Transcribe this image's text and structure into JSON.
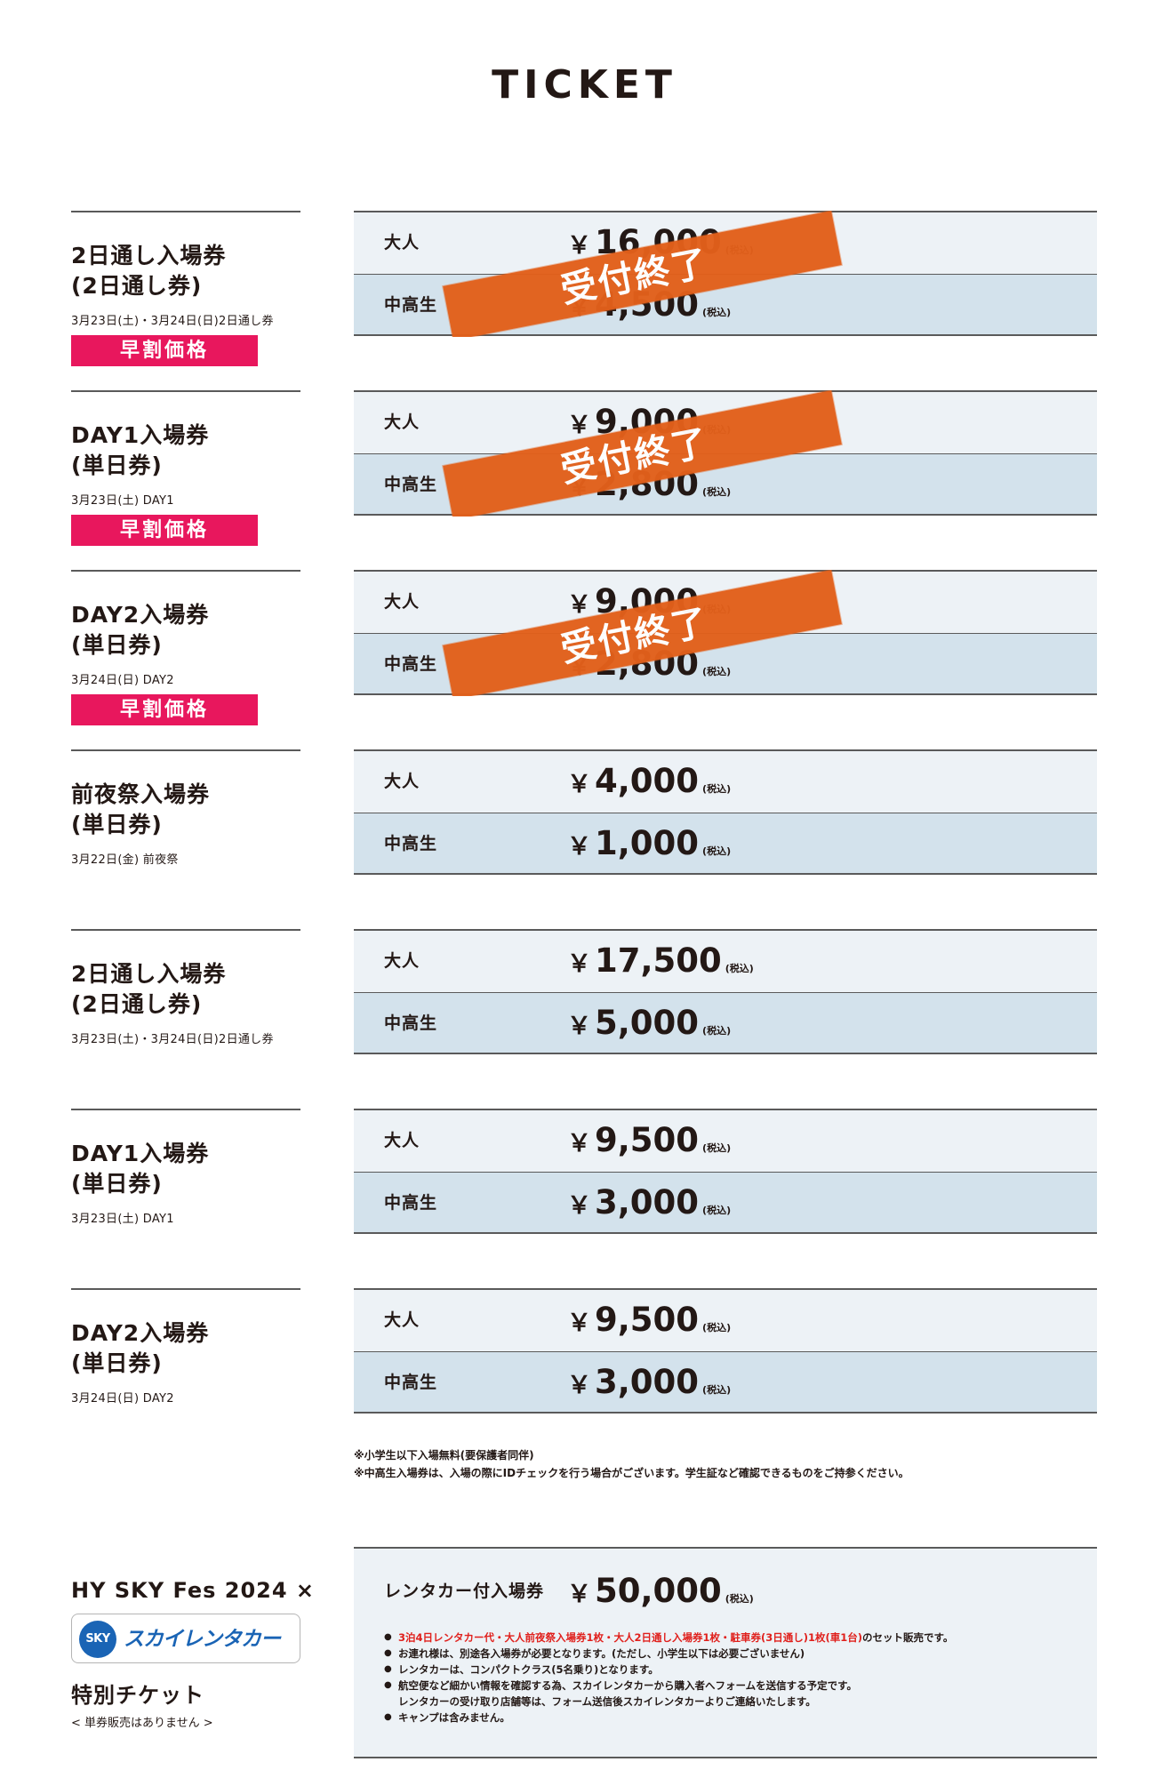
{
  "page_title": "TICKET",
  "closed_label": "受付終了",
  "early_bird_label": "早割価格",
  "tax_label": "(税込)",
  "yen_symbol": "￥",
  "groups": [
    {
      "name_line1": "2日通し入場券",
      "name_line2": "(2日通し券)",
      "date": "3月23日(土)・3月24日(日)2日通し券",
      "early_bird": true,
      "closed": true,
      "adult_label": "大人",
      "adult_price": "16,000",
      "student_label": "中高生",
      "student_price": "4,500"
    },
    {
      "name_line1": "DAY1入場券",
      "name_line2": "(単日券)",
      "date": "3月23日(土) DAY1",
      "early_bird": true,
      "closed": true,
      "adult_label": "大人",
      "adult_price": "9,000",
      "student_label": "中高生",
      "student_price": "2,800"
    },
    {
      "name_line1": "DAY2入場券",
      "name_line2": "(単日券)",
      "date": "3月24日(日) DAY2",
      "early_bird": true,
      "closed": true,
      "adult_label": "大人",
      "adult_price": "9,000",
      "student_label": "中高生",
      "student_price": "2,800"
    },
    {
      "name_line1": "前夜祭入場券",
      "name_line2": "(単日券)",
      "date": "3月22日(金) 前夜祭",
      "early_bird": false,
      "closed": false,
      "adult_label": "大人",
      "adult_price": "4,000",
      "student_label": "中高生",
      "student_price": "1,000"
    },
    {
      "name_line1": "2日通し入場券",
      "name_line2": "(2日通し券)",
      "date": "3月23日(土)・3月24日(日)2日通し券",
      "early_bird": false,
      "closed": false,
      "adult_label": "大人",
      "adult_price": "17,500",
      "student_label": "中高生",
      "student_price": "5,000"
    },
    {
      "name_line1": "DAY1入場券",
      "name_line2": "(単日券)",
      "date": "3月23日(土) DAY1",
      "early_bird": false,
      "closed": false,
      "adult_label": "大人",
      "adult_price": "9,500",
      "student_label": "中高生",
      "student_price": "3,000"
    },
    {
      "name_line1": "DAY2入場券",
      "name_line2": "(単日券)",
      "date": "3月24日(日) DAY2",
      "early_bird": false,
      "closed": false,
      "adult_label": "大人",
      "adult_price": "9,500",
      "student_label": "中高生",
      "student_price": "3,000"
    }
  ],
  "notes": [
    "※小学生以下入場無料(要保護者同伴)",
    "※中高生入場券は、入場の際にIDチェックを行う場合がございます。学生証など確認できるものをご持参ください。"
  ],
  "collab": {
    "title": "HY SKY Fes 2024 ×",
    "logo_mark": "SKY",
    "logo_text": "スカイレンタカー",
    "subtitle": "特別チケット",
    "note": "< 単券販売はありません >",
    "label": "レンタカー付入場券",
    "price": "50,000",
    "bullet_highlight": "3泊4日レンタカー代・大人前夜祭入場券1枚・大人2日通し入場券1枚・駐車券(3日通し)1枚(車1台)",
    "bullet_highlight_suffix": "のセット販売です。",
    "bullets": [
      "お連れ様は、別途各入場券が必要となります。(ただし、小学生以下は必要ございません)",
      "レンタカーは、コンパクトクラス(5名乗り)となります。",
      "航空便など細かい情報を確認する為、スカイレンタカーから購入者へフォームを送信する予定です。",
      "レンタカーの受け取り店舗等は、フォーム送信後スカイレンタカーよりご連絡いたします。",
      "キャンプは含みません。"
    ]
  }
}
